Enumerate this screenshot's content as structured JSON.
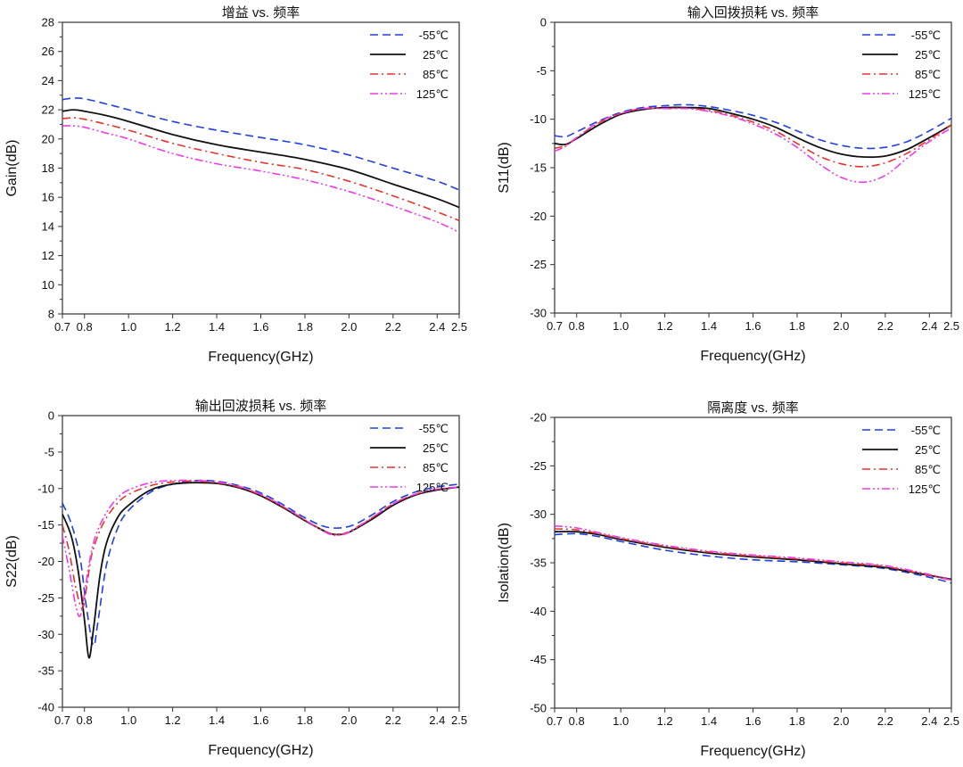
{
  "chart_data": [
    {
      "type": "line",
      "title": "增益 vs. 频率",
      "xlabel": "Frequency(GHz)",
      "ylabel": "Gain(dB)",
      "xlim": [
        0.7,
        2.5
      ],
      "ylim": [
        8,
        28
      ],
      "xticks": [
        "0.7",
        "0.8",
        "1.0",
        "1.2",
        "1.4",
        "1.6",
        "1.8",
        "2.0",
        "2.2",
        "2.4",
        "2.5"
      ],
      "yticks": [
        "8",
        "10",
        "12",
        "14",
        "16",
        "18",
        "20",
        "22",
        "24",
        "26",
        "28"
      ],
      "legend_position": "top-right",
      "series": [
        {
          "name": "-55℃",
          "color": "#1f3fe0",
          "dash": "dashed",
          "x": [
            0.7,
            0.75,
            0.8,
            0.9,
            1.0,
            1.2,
            1.4,
            1.6,
            1.8,
            2.0,
            2.2,
            2.4,
            2.5
          ],
          "y": [
            22.7,
            22.8,
            22.75,
            22.4,
            22.0,
            21.2,
            20.6,
            20.1,
            19.6,
            18.9,
            18.0,
            17.1,
            16.5
          ]
        },
        {
          "name": "25℃",
          "color": "#111111",
          "dash": "solid",
          "x": [
            0.7,
            0.75,
            0.8,
            0.9,
            1.0,
            1.2,
            1.4,
            1.6,
            1.8,
            2.0,
            2.2,
            2.4,
            2.5
          ],
          "y": [
            21.9,
            22.0,
            21.9,
            21.6,
            21.2,
            20.3,
            19.6,
            19.1,
            18.6,
            17.9,
            16.9,
            15.9,
            15.3
          ]
        },
        {
          "name": "85℃",
          "color": "#e8332a",
          "dash": "dashdot",
          "x": [
            0.7,
            0.75,
            0.8,
            0.9,
            1.0,
            1.2,
            1.4,
            1.6,
            1.8,
            2.0,
            2.2,
            2.4,
            2.5
          ],
          "y": [
            21.4,
            21.45,
            21.35,
            21.0,
            20.6,
            19.7,
            19.0,
            18.4,
            17.9,
            17.1,
            16.1,
            15.0,
            14.4
          ]
        },
        {
          "name": "125℃",
          "color": "#ee3ae8",
          "dash": "dashdotdot",
          "x": [
            0.7,
            0.75,
            0.8,
            0.9,
            1.0,
            1.2,
            1.4,
            1.6,
            1.8,
            2.0,
            2.2,
            2.4,
            2.5
          ],
          "y": [
            20.9,
            20.9,
            20.8,
            20.4,
            20.0,
            19.0,
            18.3,
            17.8,
            17.2,
            16.4,
            15.4,
            14.3,
            13.6
          ]
        }
      ]
    },
    {
      "type": "line",
      "title": "输入回拨损耗 vs. 频率",
      "xlabel": "Frequency(GHz)",
      "ylabel": "S11(dB)",
      "xlim": [
        0.7,
        2.5
      ],
      "ylim": [
        -30,
        0
      ],
      "xticks": [
        "0.7",
        "0.8",
        "1.0",
        "1.2",
        "1.4",
        "1.6",
        "1.8",
        "2.0",
        "2.2",
        "2.4",
        "2.5"
      ],
      "yticks": [
        "-30",
        "-25",
        "-20",
        "-15",
        "-10",
        "-5",
        "0"
      ],
      "legend_position": "top-right",
      "series": [
        {
          "name": "-55℃",
          "color": "#1f3fe0",
          "dash": "dashed",
          "x": [
            0.7,
            0.75,
            0.8,
            0.9,
            1.0,
            1.1,
            1.2,
            1.3,
            1.4,
            1.5,
            1.6,
            1.7,
            1.8,
            1.9,
            2.0,
            2.1,
            2.2,
            2.3,
            2.4,
            2.5
          ],
          "y": [
            -11.7,
            -11.8,
            -11.3,
            -10.2,
            -9.3,
            -8.8,
            -8.6,
            -8.5,
            -8.7,
            -9.1,
            -9.6,
            -10.3,
            -11.2,
            -12.1,
            -12.7,
            -13.0,
            -12.9,
            -12.3,
            -11.2,
            -9.9
          ]
        },
        {
          "name": "25℃",
          "color": "#111111",
          "dash": "solid",
          "x": [
            0.7,
            0.75,
            0.8,
            0.9,
            1.0,
            1.1,
            1.2,
            1.3,
            1.4,
            1.5,
            1.6,
            1.7,
            1.8,
            1.9,
            2.0,
            2.1,
            2.2,
            2.3,
            2.4,
            2.5
          ],
          "y": [
            -12.5,
            -12.6,
            -12.0,
            -10.6,
            -9.5,
            -9.0,
            -8.8,
            -8.8,
            -8.9,
            -9.4,
            -10.0,
            -10.8,
            -11.9,
            -12.9,
            -13.6,
            -13.9,
            -13.8,
            -13.1,
            -11.9,
            -10.6
          ]
        },
        {
          "name": "85℃",
          "color": "#e8332a",
          "dash": "dashdot",
          "x": [
            0.7,
            0.75,
            0.8,
            0.9,
            1.0,
            1.1,
            1.2,
            1.3,
            1.4,
            1.5,
            1.6,
            1.7,
            1.8,
            1.9,
            2.0,
            2.1,
            2.2,
            2.3,
            2.4,
            2.5
          ],
          "y": [
            -13.0,
            -12.7,
            -11.9,
            -10.4,
            -9.4,
            -8.9,
            -8.9,
            -8.9,
            -9.1,
            -9.6,
            -10.3,
            -11.2,
            -12.5,
            -13.8,
            -14.6,
            -14.9,
            -14.5,
            -13.5,
            -12.1,
            -10.6
          ]
        },
        {
          "name": "125℃",
          "color": "#ee3ae8",
          "dash": "dashdotdot",
          "x": [
            0.7,
            0.75,
            0.8,
            0.9,
            1.0,
            1.1,
            1.2,
            1.3,
            1.4,
            1.5,
            1.6,
            1.7,
            1.8,
            1.9,
            2.0,
            2.1,
            2.2,
            2.3,
            2.4,
            2.5
          ],
          "y": [
            -13.3,
            -12.8,
            -11.9,
            -10.3,
            -9.4,
            -8.9,
            -8.9,
            -8.9,
            -9.2,
            -9.7,
            -10.5,
            -11.5,
            -12.9,
            -14.6,
            -16.0,
            -16.5,
            -15.8,
            -14.0,
            -12.3,
            -10.9
          ]
        }
      ]
    },
    {
      "type": "line",
      "title": "输出回波损耗 vs. 频率",
      "xlabel": "Frequency(GHz)",
      "ylabel": "S22(dB)",
      "xlim": [
        0.7,
        2.5
      ],
      "ylim": [
        -40,
        0
      ],
      "xticks": [
        "0.7",
        "0.8",
        "1.0",
        "1.2",
        "1.4",
        "1.6",
        "1.8",
        "2.0",
        "2.2",
        "2.4",
        "2.5"
      ],
      "yticks": [
        "-40",
        "-35",
        "-30",
        "-25",
        "-20",
        "-15",
        "-10",
        "-5",
        "0"
      ],
      "legend_position": "top-right",
      "series": [
        {
          "name": "-55℃",
          "color": "#1f3fe0",
          "dash": "dashed",
          "x": [
            0.7,
            0.74,
            0.78,
            0.81,
            0.84,
            0.86,
            0.9,
            0.95,
            1.0,
            1.1,
            1.2,
            1.3,
            1.4,
            1.5,
            1.6,
            1.7,
            1.8,
            1.9,
            2.0,
            2.1,
            2.2,
            2.3,
            2.4,
            2.5
          ],
          "y": [
            -12.0,
            -14.8,
            -19.5,
            -26.5,
            -31.5,
            -28.5,
            -20.5,
            -15.5,
            -13.0,
            -10.5,
            -9.4,
            -8.9,
            -9.0,
            -9.6,
            -10.6,
            -12.2,
            -14.0,
            -15.3,
            -15.2,
            -13.7,
            -11.8,
            -10.5,
            -9.8,
            -9.4
          ]
        },
        {
          "name": "25℃",
          "color": "#111111",
          "dash": "solid",
          "x": [
            0.7,
            0.74,
            0.77,
            0.8,
            0.82,
            0.84,
            0.87,
            0.9,
            0.95,
            1.0,
            1.1,
            1.2,
            1.3,
            1.4,
            1.5,
            1.6,
            1.7,
            1.8,
            1.9,
            1.95,
            2.0,
            2.1,
            2.2,
            2.3,
            2.4,
            2.5
          ],
          "y": [
            -13.5,
            -16.5,
            -21.0,
            -28.0,
            -33.2,
            -29.5,
            -22.0,
            -17.5,
            -14.0,
            -12.3,
            -10.2,
            -9.4,
            -9.2,
            -9.3,
            -9.9,
            -11.0,
            -12.6,
            -14.4,
            -16.0,
            -16.3,
            -16.0,
            -14.3,
            -12.3,
            -10.9,
            -10.2,
            -9.8
          ]
        },
        {
          "name": "85℃",
          "color": "#e8332a",
          "dash": "dashdot",
          "x": [
            0.7,
            0.73,
            0.76,
            0.79,
            0.81,
            0.83,
            0.86,
            0.9,
            0.95,
            1.0,
            1.1,
            1.2,
            1.3,
            1.4,
            1.5,
            1.6,
            1.7,
            1.8,
            1.9,
            1.95,
            2.0,
            2.1,
            2.2,
            2.3,
            2.4,
            2.5
          ],
          "y": [
            -15.0,
            -18.5,
            -23.5,
            -26.5,
            -23.5,
            -19.5,
            -16.5,
            -14.0,
            -12.0,
            -10.8,
            -9.6,
            -9.1,
            -9.0,
            -9.2,
            -9.8,
            -10.9,
            -12.5,
            -14.3,
            -16.0,
            -16.3,
            -15.9,
            -14.1,
            -12.1,
            -10.8,
            -10.1,
            -9.8
          ]
        },
        {
          "name": "125℃",
          "color": "#ee3ae8",
          "dash": "dashdotdot",
          "x": [
            0.7,
            0.73,
            0.76,
            0.78,
            0.8,
            0.82,
            0.85,
            0.9,
            0.95,
            1.0,
            1.1,
            1.2,
            1.3,
            1.4,
            1.5,
            1.6,
            1.7,
            1.8,
            1.9,
            1.95,
            2.0,
            2.1,
            2.2,
            2.3,
            2.4,
            2.5
          ],
          "y": [
            -16.5,
            -21.0,
            -26.0,
            -27.5,
            -24.5,
            -20.5,
            -16.5,
            -13.3,
            -11.3,
            -10.2,
            -9.2,
            -8.9,
            -8.9,
            -9.1,
            -9.7,
            -10.8,
            -12.4,
            -14.3,
            -16.1,
            -16.4,
            -16.0,
            -14.1,
            -12.1,
            -10.8,
            -10.1,
            -9.8
          ]
        }
      ]
    },
    {
      "type": "line",
      "title": "隔离度 vs. 频率",
      "xlabel": "Frequency(GHz)",
      "ylabel": "Isolation(dB)",
      "xlim": [
        0.7,
        2.5
      ],
      "ylim": [
        -50,
        -20
      ],
      "xticks": [
        "0.7",
        "0.8",
        "1.0",
        "1.2",
        "1.4",
        "1.6",
        "1.8",
        "2.0",
        "2.2",
        "2.4",
        "2.5"
      ],
      "yticks": [
        "-50",
        "-45",
        "-40",
        "-35",
        "-30",
        "-25",
        "-20"
      ],
      "legend_position": "top-right",
      "series": [
        {
          "name": "-55℃",
          "color": "#1f3fe0",
          "dash": "dashed",
          "x": [
            0.7,
            0.8,
            0.9,
            1.0,
            1.2,
            1.4,
            1.6,
            1.8,
            2.0,
            2.2,
            2.4,
            2.5
          ],
          "y": [
            -32.1,
            -32.0,
            -32.3,
            -32.8,
            -33.7,
            -34.3,
            -34.7,
            -34.9,
            -35.2,
            -35.6,
            -36.5,
            -37.1
          ]
        },
        {
          "name": "25℃",
          "color": "#111111",
          "dash": "solid",
          "x": [
            0.7,
            0.8,
            0.9,
            1.0,
            1.2,
            1.4,
            1.6,
            1.8,
            2.0,
            2.2,
            2.4,
            2.5
          ],
          "y": [
            -31.8,
            -31.8,
            -32.1,
            -32.6,
            -33.4,
            -34.0,
            -34.4,
            -34.7,
            -35.1,
            -35.5,
            -36.3,
            -36.7
          ]
        },
        {
          "name": "85℃",
          "color": "#e8332a",
          "dash": "dashdot",
          "x": [
            0.7,
            0.8,
            0.9,
            1.0,
            1.2,
            1.4,
            1.6,
            1.8,
            2.0,
            2.2,
            2.4,
            2.5
          ],
          "y": [
            -31.5,
            -31.6,
            -32.0,
            -32.5,
            -33.3,
            -33.9,
            -34.3,
            -34.6,
            -35.0,
            -35.4,
            -36.3,
            -36.8
          ]
        },
        {
          "name": "125℃",
          "color": "#ee3ae8",
          "dash": "dashdotdot",
          "x": [
            0.7,
            0.8,
            0.9,
            1.0,
            1.2,
            1.4,
            1.6,
            1.8,
            2.0,
            2.2,
            2.4,
            2.5
          ],
          "y": [
            -31.2,
            -31.4,
            -31.9,
            -32.4,
            -33.2,
            -33.8,
            -34.2,
            -34.5,
            -34.9,
            -35.3,
            -36.2,
            -36.8
          ]
        }
      ]
    }
  ]
}
